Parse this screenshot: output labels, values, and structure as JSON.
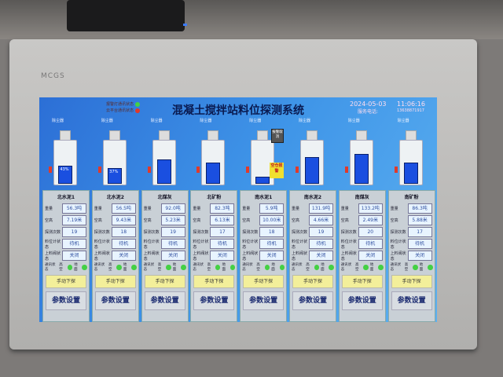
{
  "device": {
    "brand": "MCGS"
  },
  "header": {
    "title": "混凝土搅拌站料位探测系统",
    "date": "2024-05-03",
    "time": "11:06:16",
    "service_label": "服务电话:",
    "phone": "13638871917",
    "status": [
      {
        "label": "报警灯通讯状态",
        "color": "#44d044"
      },
      {
        "label": "云平台通讯状态",
        "color": "#e03a2a"
      }
    ]
  },
  "buttons": {
    "alarm_cancel": "报警取消",
    "empty_alarm": "空仓报警"
  },
  "labels": {
    "dust": "除尘器",
    "weight": "重量",
    "height": "空高",
    "count": "探测次数",
    "gauge": "料位计状态",
    "valve": "上料阀状态",
    "comm": "通讯状态",
    "high": "高空",
    "ground": "地面",
    "manual": "手动下探",
    "params": "参数设置"
  },
  "silos": [
    {
      "name": "北水泥1",
      "level": 43,
      "pct": "43%",
      "weight": "56.3吨",
      "height": "7.19米",
      "count": "19",
      "gauge": "待机",
      "valve": "关闭"
    },
    {
      "name": "北水泥2",
      "level": 37,
      "pct": "37%",
      "weight": "56.5吨",
      "height": "9.43米",
      "count": "18",
      "gauge": "待机",
      "valve": "关闭"
    },
    {
      "name": "北煤灰",
      "level": 60,
      "weight": "92.0吨",
      "height": "5.23米",
      "count": "19",
      "gauge": "待机",
      "valve": "关闭"
    },
    {
      "name": "北矿粉",
      "level": 53,
      "weight": "82.3吨",
      "height": "6.13米",
      "count": "17",
      "gauge": "待机",
      "valve": "关闭"
    },
    {
      "name": "南水泥1",
      "level": 15,
      "weight": "5.9吨",
      "height": "10.00米",
      "count": "18",
      "gauge": "待机",
      "valve": "关闭"
    },
    {
      "name": "南水泥2",
      "level": 66,
      "weight": "131.9吨",
      "height": "4.66米",
      "count": "19",
      "gauge": "待机",
      "valve": "关闭"
    },
    {
      "name": "南煤灰",
      "level": 75,
      "weight": "133.2吨",
      "height": "2.49米",
      "count": "20",
      "gauge": "待机",
      "valve": "关闭"
    },
    {
      "name": "南矿粉",
      "level": 53,
      "weight": "86.3吨",
      "height": "5.88米",
      "count": "17",
      "gauge": "待机",
      "valve": "关闭"
    }
  ]
}
